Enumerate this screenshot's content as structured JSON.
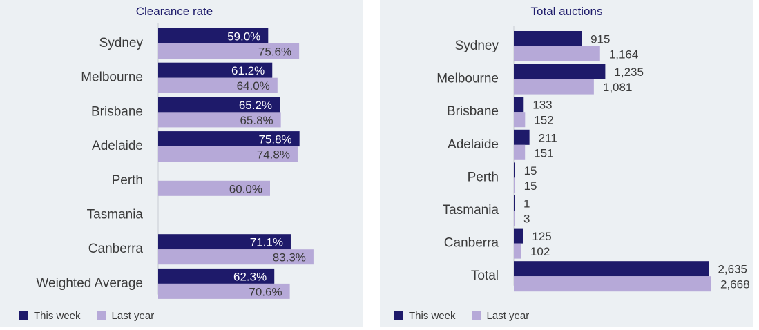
{
  "colors": {
    "this_week": "#1e1a6a",
    "last_year": "#b6a9d8",
    "panel_bg": "#ecf0f3",
    "axis": "#c9ccd3"
  },
  "legend": {
    "this_week": "This week",
    "last_year": "Last year"
  },
  "chart_data": [
    {
      "type": "bar",
      "orientation": "horizontal",
      "title": "Clearance rate",
      "categories": [
        "Sydney",
        "Melbourne",
        "Brisbane",
        "Adelaide",
        "Perth",
        "Tasmania",
        "Canberra",
        "Weighted Average"
      ],
      "series": [
        {
          "name": "This week",
          "values": [
            59.0,
            61.2,
            65.2,
            75.8,
            null,
            null,
            71.1,
            62.3
          ],
          "labels": [
            "59.0%",
            "61.2%",
            "65.2%",
            "75.8%",
            "",
            "",
            "71.1%",
            "62.3%"
          ]
        },
        {
          "name": "Last year",
          "values": [
            75.6,
            64.0,
            65.8,
            74.8,
            60.0,
            null,
            83.3,
            70.6
          ],
          "labels": [
            "75.6%",
            "64.0%",
            "65.8%",
            "74.8%",
            "60.0%",
            "",
            "83.3%",
            "70.6%"
          ]
        }
      ],
      "xlim": [
        0,
        100
      ],
      "legend_position": "bottom-left"
    },
    {
      "type": "bar",
      "orientation": "horizontal",
      "title": "Total auctions",
      "categories": [
        "Sydney",
        "Melbourne",
        "Brisbane",
        "Adelaide",
        "Perth",
        "Tasmania",
        "Canberra",
        "Total"
      ],
      "series": [
        {
          "name": "This week",
          "values": [
            915,
            1235,
            133,
            211,
            15,
            1,
            125,
            2635
          ],
          "labels": [
            "915",
            "1,235",
            "133",
            "211",
            "15",
            "1",
            "125",
            "2,635"
          ]
        },
        {
          "name": "Last year",
          "values": [
            1164,
            1081,
            152,
            151,
            15,
            3,
            102,
            2668
          ],
          "labels": [
            "1,164",
            "1,081",
            "152",
            "151",
            "15",
            "3",
            "102",
            "2,668"
          ]
        }
      ],
      "xlim": [
        0,
        2700
      ],
      "legend_position": "bottom-left"
    }
  ]
}
